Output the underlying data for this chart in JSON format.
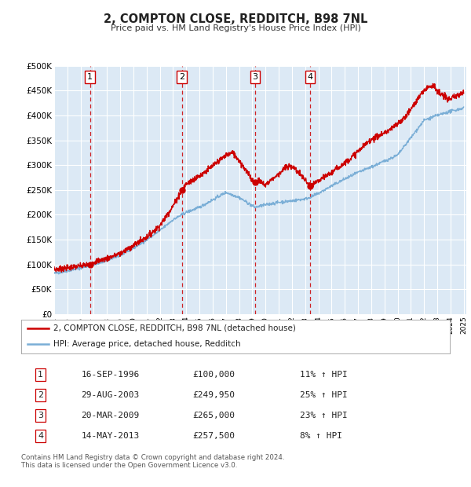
{
  "title": "2, COMPTON CLOSE, REDDITCH, B98 7NL",
  "subtitle": "Price paid vs. HM Land Registry's House Price Index (HPI)",
  "ylim": [
    0,
    500000
  ],
  "yticks": [
    0,
    50000,
    100000,
    150000,
    200000,
    250000,
    300000,
    350000,
    400000,
    450000,
    500000
  ],
  "xlim_start": 1994.0,
  "xlim_end": 2025.2,
  "background_color": "#ffffff",
  "plot_bg_color": "#dce9f5",
  "grid_color": "#ffffff",
  "sale_color": "#cc0000",
  "hpi_color": "#7aaed6",
  "vline_dates": [
    1996.71,
    2003.66,
    2009.21,
    2013.37
  ],
  "box_labels": [
    "1",
    "2",
    "3",
    "4"
  ],
  "sale_prices": [
    100000,
    249950,
    265000,
    257500
  ],
  "legend_sale_label": "2, COMPTON CLOSE, REDDITCH, B98 7NL (detached house)",
  "legend_hpi_label": "HPI: Average price, detached house, Redditch",
  "table": [
    {
      "num": "1",
      "date": "16-SEP-1996",
      "price": "£100,000",
      "pct": "11% ↑ HPI"
    },
    {
      "num": "2",
      "date": "29-AUG-2003",
      "price": "£249,950",
      "pct": "25% ↑ HPI"
    },
    {
      "num": "3",
      "date": "20-MAR-2009",
      "price": "£265,000",
      "pct": "23% ↑ HPI"
    },
    {
      "num": "4",
      "date": "14-MAY-2013",
      "price": "£257,500",
      "pct": "8% ↑ HPI"
    }
  ],
  "footnote": "Contains HM Land Registry data © Crown copyright and database right 2024.\nThis data is licensed under the Open Government Licence v3.0."
}
